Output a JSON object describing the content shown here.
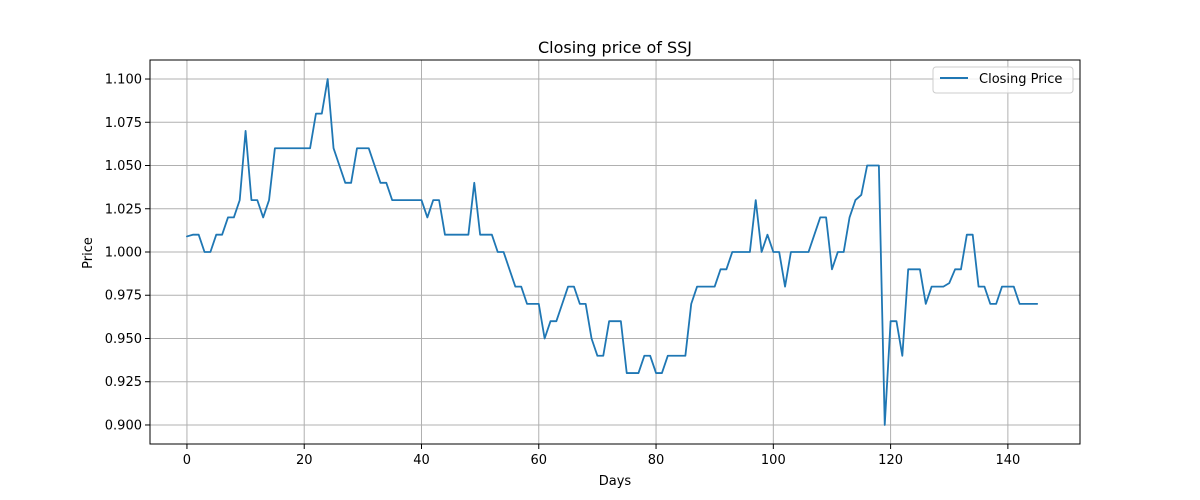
{
  "chart_data": {
    "type": "line",
    "title": "Closing price of SSJ",
    "xlabel": "Days",
    "ylabel": "Price",
    "xlim": [
      -6.3,
      152.3
    ],
    "ylim": [
      0.889,
      1.111
    ],
    "xticks": [
      0,
      20,
      40,
      60,
      80,
      100,
      120,
      140
    ],
    "yticks": [
      0.9,
      0.925,
      0.95,
      0.975,
      1.0,
      1.025,
      1.05,
      1.075,
      1.1
    ],
    "ytick_labels": [
      "0.900",
      "0.925",
      "0.950",
      "0.975",
      "1.000",
      "1.025",
      "1.050",
      "1.075",
      "1.100"
    ],
    "xtick_labels": [
      "0",
      "20",
      "40",
      "60",
      "80",
      "100",
      "120",
      "140"
    ],
    "grid": true,
    "legend_position": "top-right",
    "colors": {
      "series": "#1f77b4",
      "grid": "#b0b0b0"
    },
    "series": [
      {
        "name": "Closing Price",
        "x": [
          0,
          1,
          2,
          3,
          4,
          5,
          6,
          7,
          8,
          9,
          10,
          11,
          12,
          13,
          14,
          15,
          16,
          17,
          18,
          19,
          20,
          21,
          22,
          23,
          24,
          25,
          26,
          27,
          28,
          29,
          30,
          31,
          32,
          33,
          34,
          35,
          36,
          37,
          38,
          39,
          40,
          41,
          42,
          43,
          44,
          45,
          46,
          47,
          48,
          49,
          50,
          51,
          52,
          53,
          54,
          55,
          56,
          57,
          58,
          59,
          60,
          61,
          62,
          63,
          64,
          65,
          66,
          67,
          68,
          69,
          70,
          71,
          72,
          73,
          74,
          75,
          76,
          77,
          78,
          79,
          80,
          81,
          82,
          83,
          84,
          85,
          86,
          87,
          88,
          89,
          90,
          91,
          92,
          93,
          94,
          95,
          96,
          97,
          98,
          99,
          100,
          101,
          102,
          103,
          104,
          105,
          106,
          107,
          108,
          109,
          110,
          111,
          112,
          113,
          114,
          115,
          116,
          117,
          118,
          119,
          120,
          121,
          122,
          123,
          124,
          125,
          126,
          127,
          128,
          129,
          130,
          131,
          132,
          133,
          134,
          135,
          136,
          137,
          138,
          139,
          140,
          141,
          142,
          143,
          144,
          145
        ],
        "values": [
          1.009,
          1.01,
          1.01,
          1.0,
          1.0,
          1.01,
          1.01,
          1.02,
          1.02,
          1.03,
          1.07,
          1.03,
          1.03,
          1.02,
          1.03,
          1.06,
          1.06,
          1.06,
          1.06,
          1.06,
          1.06,
          1.06,
          1.08,
          1.08,
          1.1,
          1.06,
          1.05,
          1.04,
          1.04,
          1.06,
          1.06,
          1.06,
          1.05,
          1.04,
          1.04,
          1.03,
          1.03,
          1.03,
          1.03,
          1.03,
          1.03,
          1.02,
          1.03,
          1.03,
          1.01,
          1.01,
          1.01,
          1.01,
          1.01,
          1.04,
          1.01,
          1.01,
          1.01,
          1.0,
          1.0,
          0.99,
          0.98,
          0.98,
          0.97,
          0.97,
          0.97,
          0.95,
          0.96,
          0.96,
          0.97,
          0.98,
          0.98,
          0.97,
          0.97,
          0.95,
          0.94,
          0.94,
          0.96,
          0.96,
          0.96,
          0.93,
          0.93,
          0.93,
          0.94,
          0.94,
          0.93,
          0.93,
          0.94,
          0.94,
          0.94,
          0.94,
          0.97,
          0.98,
          0.98,
          0.98,
          0.98,
          0.99,
          0.99,
          1.0,
          1.0,
          1.0,
          1.0,
          1.03,
          1.0,
          1.01,
          1.0,
          1.0,
          0.98,
          1.0,
          1.0,
          1.0,
          1.0,
          1.01,
          1.02,
          1.02,
          0.99,
          1.0,
          1.0,
          1.02,
          1.03,
          1.033,
          1.05,
          1.05,
          1.05,
          0.9,
          0.96,
          0.96,
          0.94,
          0.99,
          0.99,
          0.99,
          0.97,
          0.98,
          0.98,
          0.98,
          0.982,
          0.99,
          0.99,
          1.01,
          1.01,
          0.98,
          0.98,
          0.97,
          0.97,
          0.98,
          0.98,
          0.98,
          0.97,
          0.97,
          0.97,
          0.97
        ]
      }
    ]
  }
}
